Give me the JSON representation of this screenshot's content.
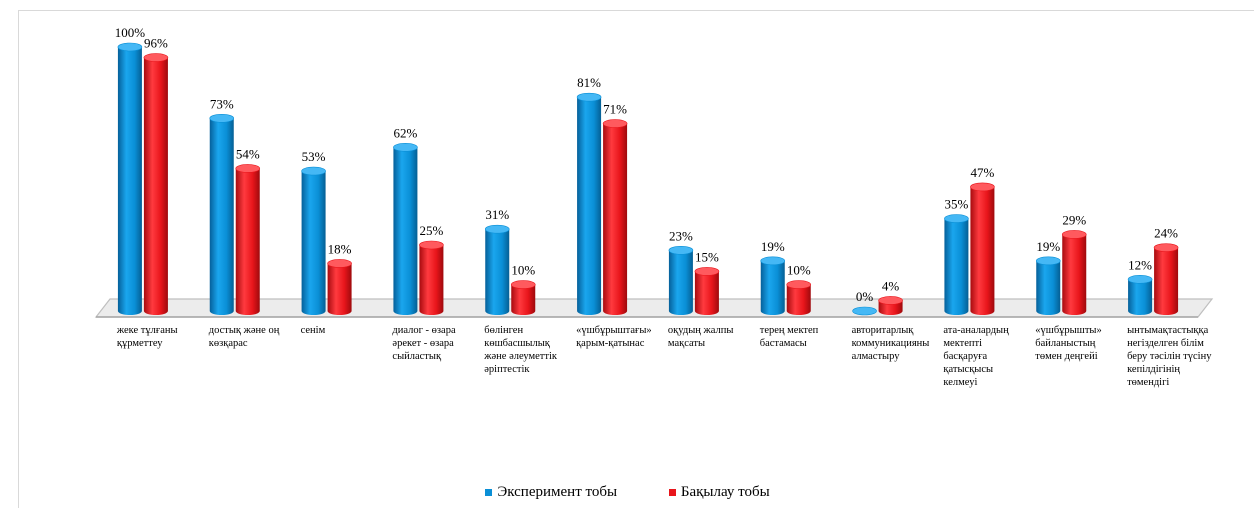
{
  "chart_data": {
    "type": "bar",
    "categories": [
      [
        "жеке тұлғаны",
        "құрметтеу"
      ],
      [
        "достық және оң",
        "көзқарас"
      ],
      [
        "сенім"
      ],
      [
        "диалог - өзара",
        "әрекет - өзара",
        "сыйластық"
      ],
      [
        "бөлінген",
        "көшбасшылық",
        "және әлеуметтік",
        "әріптестік"
      ],
      [
        "«үшбұрыштағы»",
        "қарым-қатынас"
      ],
      [
        "оқудың жалпы",
        "мақсаты"
      ],
      [
        "терең мектеп",
        "бастамасы"
      ],
      [
        "авторитарлық",
        "коммуникацияны",
        "алмастыру"
      ],
      [
        "ата-аналардың",
        "мектепті",
        "басқаруға",
        "қатысқысы",
        "келмеуі"
      ],
      [
        "«үшбұрышты»",
        "байланыстың",
        "төмен деңгейі"
      ],
      [
        "ынтымақтастыққа",
        "негізделген білім",
        "беру тәсілін түсіну",
        "кепілдігінің",
        "төмендігі"
      ]
    ],
    "series": [
      {
        "name": "Эксперимент тобы",
        "color": "#0a8fd6",
        "values": [
          100,
          73,
          53,
          62,
          31,
          81,
          23,
          19,
          0,
          35,
          19,
          12
        ],
        "labels": [
          "100%",
          "73%",
          "53%",
          "62%",
          "31%",
          "81%",
          "23%",
          "19%",
          "0%",
          "35%",
          "19%",
          "12%"
        ]
      },
      {
        "name": "Бақылау тобы",
        "color": "#e8151b",
        "values": [
          96,
          54,
          18,
          25,
          10,
          71,
          15,
          10,
          4,
          47,
          29,
          24
        ],
        "labels": [
          "96%",
          "54%",
          "18%",
          "25%",
          "10%",
          "71%",
          "15%",
          "10%",
          "4%",
          "47%",
          "29%",
          "24%"
        ]
      }
    ],
    "ylim": [
      0,
      100
    ],
    "legend_position": "bottom"
  }
}
